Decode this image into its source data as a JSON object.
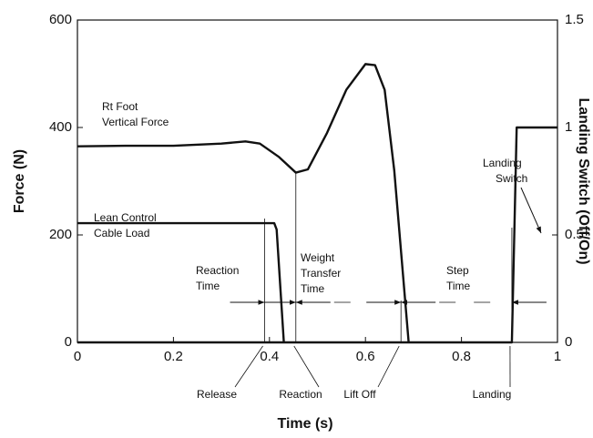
{
  "chart_data": {
    "type": "line",
    "xlabel": "Time (s)",
    "ylabel": "Force (N)",
    "y2label": "Landing Switch (Off/On)",
    "xlim": [
      0,
      1
    ],
    "xticks": [
      0,
      0.2,
      0.4,
      0.6,
      0.8,
      1
    ],
    "ylim": [
      0,
      600
    ],
    "yticks": [
      0,
      200,
      400,
      600
    ],
    "y2lim": [
      0,
      1.5
    ],
    "y2ticks": [
      0,
      0.5,
      1,
      1.5
    ],
    "series": [
      {
        "name": [
          "Rt Foot",
          "Vertical Force"
        ],
        "color": "#111111",
        "x": [
          0,
          0.1,
          0.2,
          0.3,
          0.35,
          0.38,
          0.42,
          0.455,
          0.48,
          0.52,
          0.56,
          0.6,
          0.62,
          0.64,
          0.66,
          0.675,
          0.69
        ],
        "values": [
          365,
          366,
          366,
          370,
          374,
          370,
          345,
          316,
          322,
          390,
          470,
          518,
          516,
          470,
          320,
          160,
          0
        ]
      },
      {
        "name": [
          "Lean Control",
          "Cable Load"
        ],
        "color": "#111111",
        "x": [
          0,
          0.41,
          0.415,
          0.43
        ],
        "values": [
          222,
          222,
          210,
          0
        ]
      },
      {
        "name": [
          "Landing",
          "Switch"
        ],
        "color": "#111111",
        "axis": "y2",
        "x": [
          0,
          0.905,
          0.915,
          1
        ],
        "values": [
          0,
          0,
          1,
          1
        ]
      }
    ],
    "events": [
      {
        "label": "Release",
        "x": 0.39
      },
      {
        "label": "Reaction",
        "x": 0.455
      },
      {
        "label": "Lift Off",
        "x": 0.674
      },
      {
        "label": "Landing",
        "x": 0.905
      }
    ],
    "intervals": [
      {
        "label": [
          "Reaction",
          "Time"
        ]
      },
      {
        "label": [
          "Weight",
          "Transfer",
          "Time"
        ]
      },
      {
        "label": [
          "Step",
          "Time"
        ]
      }
    ]
  }
}
